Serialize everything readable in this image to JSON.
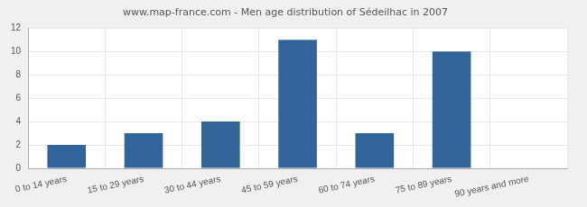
{
  "chart_data": {
    "type": "bar",
    "title": "www.map-france.com - Men age distribution of Sédeilhac in 2007",
    "categories": [
      "0 to 14 years",
      "15 to 29 years",
      "30 to 44 years",
      "45 to 59 years",
      "60 to 74 years",
      "75 to 89 years",
      "90 years and more"
    ],
    "values": [
      2,
      3,
      4,
      11,
      3,
      10,
      0
    ],
    "color": "#31659a",
    "ylim": [
      0,
      12
    ],
    "yticks": [
      0,
      2,
      4,
      6,
      8,
      10,
      12
    ],
    "grid": true
  }
}
